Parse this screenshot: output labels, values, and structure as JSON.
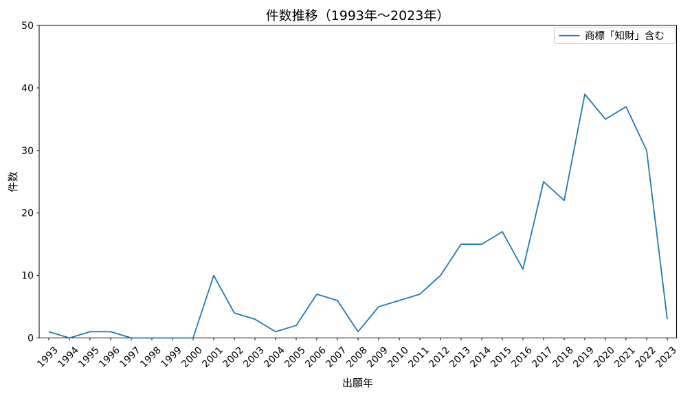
{
  "chart_data": {
    "type": "line",
    "title": "件数推移（1993年〜2023年）",
    "xlabel": "出願年",
    "ylabel": "件数",
    "x": [
      1993,
      1994,
      1995,
      1996,
      1997,
      1998,
      1999,
      2000,
      2001,
      2002,
      2003,
      2004,
      2005,
      2006,
      2007,
      2008,
      2009,
      2010,
      2011,
      2012,
      2013,
      2014,
      2015,
      2016,
      2017,
      2018,
      2019,
      2020,
      2021,
      2022,
      2023
    ],
    "xtick_labels": [
      "1993",
      "1994",
      "1995",
      "1996",
      "1997",
      "1998",
      "1999",
      "2000",
      "2001",
      "2002",
      "2003",
      "2004",
      "2005",
      "2006",
      "2007",
      "2008",
      "2009",
      "2010",
      "2011",
      "2012",
      "2013",
      "2014",
      "2015",
      "2016",
      "2017",
      "2018",
      "2019",
      "2020",
      "2021",
      "2022",
      "2023"
    ],
    "series": [
      {
        "name": "商標「知財」含む",
        "color": "#1f77b4",
        "values": [
          1,
          0,
          1,
          1,
          0,
          0,
          0,
          0,
          10,
          4,
          3,
          1,
          2,
          7,
          6,
          1,
          5,
          6,
          7,
          10,
          15,
          15,
          17,
          11,
          25,
          22,
          39,
          35,
          37,
          30,
          3
        ]
      }
    ],
    "ylim": [
      0,
      50
    ],
    "yticks": [
      0,
      10,
      20,
      30,
      40,
      50
    ],
    "grid": false,
    "legend_position": "upper right"
  }
}
